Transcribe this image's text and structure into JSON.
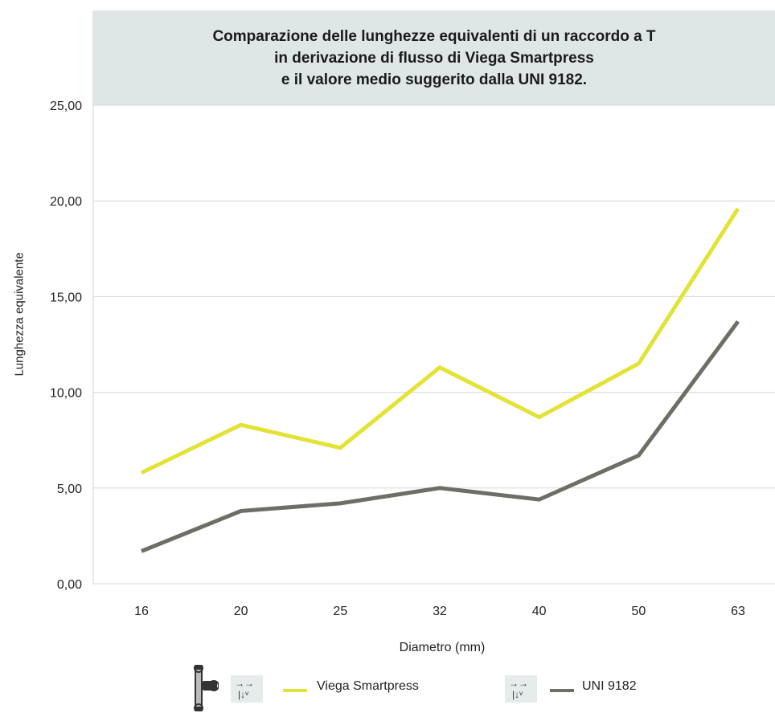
{
  "chart_data": {
    "type": "line",
    "title_lines": [
      "Comparazione delle lunghezze equivalenti di un raccordo a T",
      "in derivazione di flusso di Viega Smartpress",
      "e il valore medio suggerito dalla UNI 9182."
    ],
    "xlabel": "Diametro (mm)",
    "ylabel": "Lunghezza equivalente",
    "categories": [
      "16",
      "20",
      "25",
      "32",
      "40",
      "50",
      "63"
    ],
    "y_ticks": [
      "0,00",
      "5,00",
      "10,00",
      "15,00",
      "20,00",
      "25,00"
    ],
    "ylim": [
      0,
      25
    ],
    "grid": "horizontal",
    "legend_position": "bottom",
    "series": [
      {
        "name": "Viega Smartpress",
        "color": "#e3e337",
        "values": [
          5.8,
          8.3,
          7.1,
          11.3,
          8.7,
          11.5,
          19.6
        ]
      },
      {
        "name": "UNI 9182",
        "color": "#6e6e66",
        "values": [
          1.7,
          3.8,
          4.2,
          5.0,
          4.4,
          6.7,
          13.7
        ]
      }
    ]
  }
}
